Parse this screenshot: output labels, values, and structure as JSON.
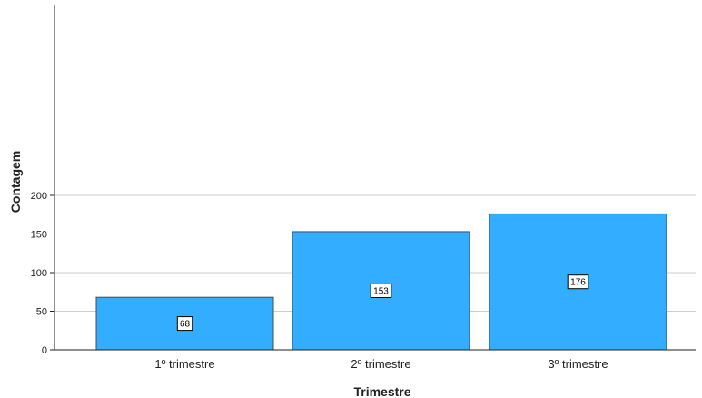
{
  "chart_data": {
    "type": "bar",
    "categories": [
      "1º trimestre",
      "2º trimestre",
      "3º trimestre"
    ],
    "values": [
      68,
      153,
      176
    ],
    "data_labels": [
      "68",
      "153",
      "176"
    ],
    "xlabel": "Trimestre",
    "ylabel": "Contagem",
    "ylim": [
      0,
      220
    ],
    "yticks": [
      0,
      50,
      100,
      150,
      200
    ],
    "ytick_labels": [
      "0",
      "50",
      "100",
      "150",
      "200"
    ],
    "grid": true,
    "bar_color": "#33adff",
    "bar_edge_color": "#3d4d5c",
    "grid_color": "#cccccc"
  }
}
